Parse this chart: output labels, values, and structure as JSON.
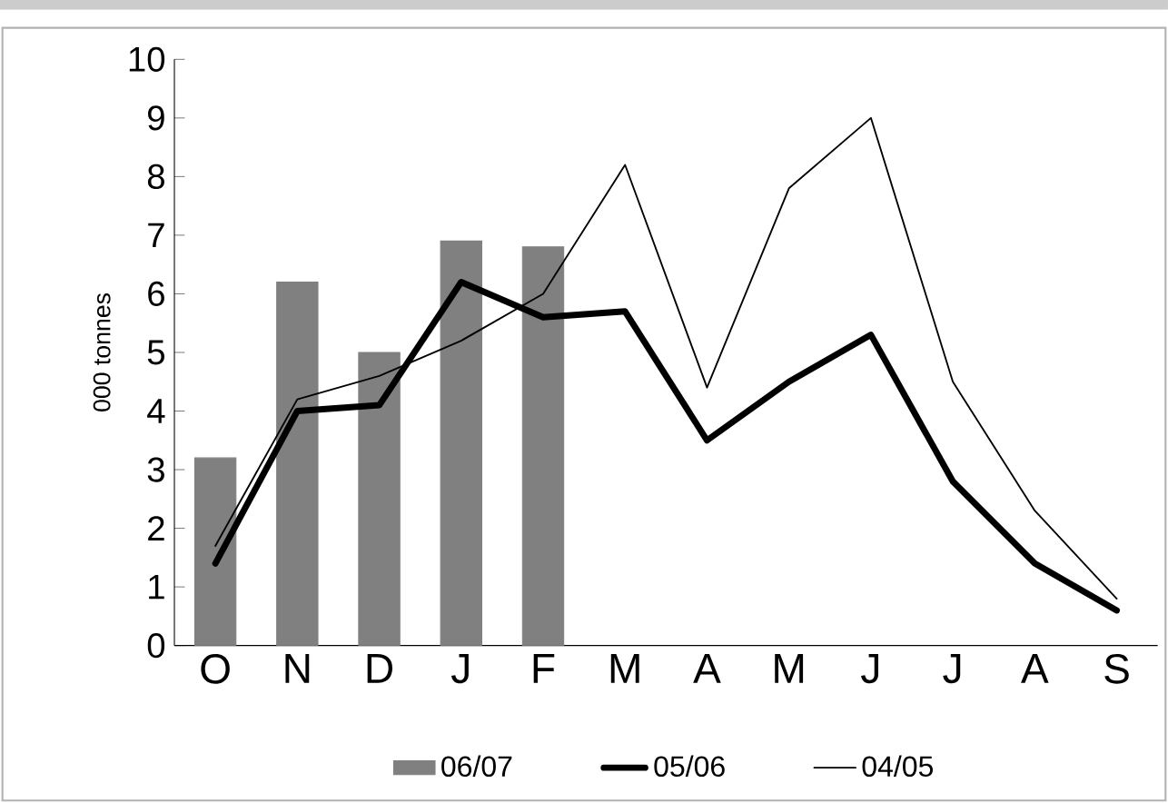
{
  "chart_data": {
    "type": "line",
    "ylabel": "000 tonnes",
    "categories": [
      "O",
      "N",
      "D",
      "J",
      "F",
      "M",
      "A",
      "M",
      "J",
      "J",
      "A",
      "S"
    ],
    "ylim": [
      0,
      10
    ],
    "yticks": [
      0,
      1,
      2,
      3,
      4,
      5,
      6,
      7,
      8,
      9,
      10
    ],
    "legend": "bottom",
    "grid": false,
    "series": [
      {
        "name": "06/07",
        "type": "bar",
        "color": "#808080",
        "values": [
          3.2,
          6.2,
          5.0,
          6.9,
          6.8,
          null,
          null,
          null,
          null,
          null,
          null,
          null
        ]
      },
      {
        "name": "05/06",
        "color": "#000000",
        "values": [
          1.4,
          4.0,
          4.1,
          6.2,
          5.6,
          5.7,
          3.5,
          4.5,
          5.3,
          2.8,
          1.4,
          0.6
        ]
      },
      {
        "name": "04/05",
        "color": "#000000",
        "values": [
          1.7,
          4.2,
          4.6,
          5.2,
          6.0,
          8.2,
          4.4,
          7.8,
          9.0,
          4.5,
          2.3,
          0.8
        ]
      }
    ]
  }
}
